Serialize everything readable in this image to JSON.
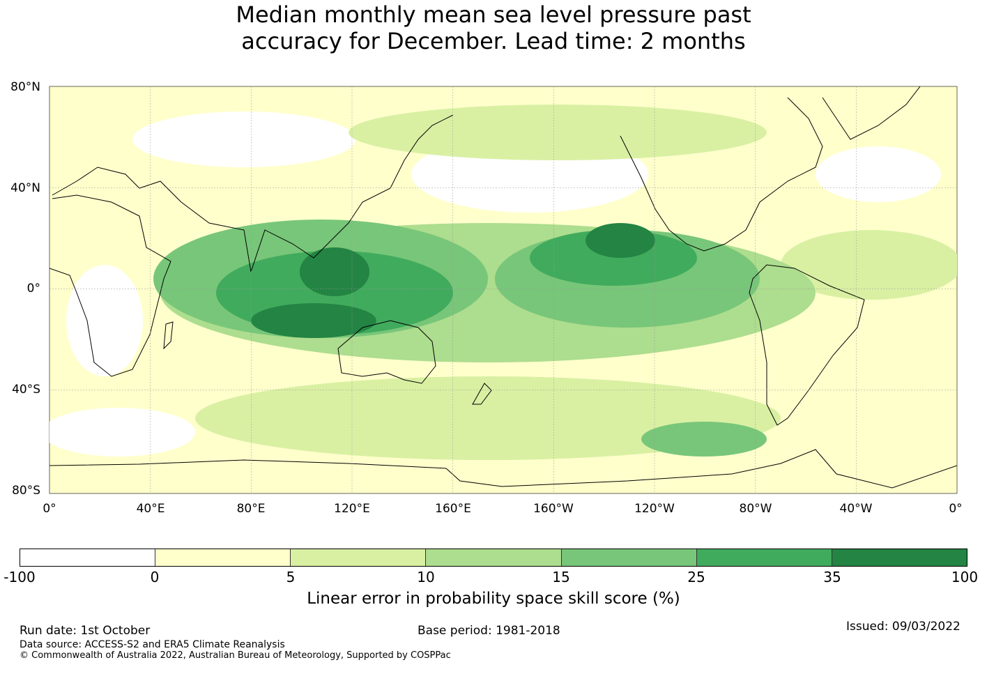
{
  "title": {
    "line1": "Median monthly mean sea level pressure past",
    "line2": "accuracy for December. Lead time: 2 months"
  },
  "map": {
    "lat_labels": [
      "80°N",
      "40°N",
      "0°",
      "40°S",
      "80°S"
    ],
    "lon_labels": [
      "0°",
      "40°E",
      "80°E",
      "120°E",
      "160°E",
      "160°W",
      "120°W",
      "80°W",
      "40°W",
      "0°"
    ],
    "colors": {
      "ocean_background": "#ffffcc",
      "coastline": "#000000",
      "gridline": "#999999"
    }
  },
  "colorbar": {
    "ticks": [
      "-100",
      "0",
      "5",
      "10",
      "15",
      "25",
      "35",
      "100"
    ],
    "colors": [
      "#ffffff",
      "#ffffcc",
      "#d9f0a3",
      "#addd8e",
      "#78c679",
      "#41ab5d",
      "#238443"
    ],
    "label": "Linear error in probability space skill score (%)"
  },
  "footer": {
    "run_date": "Run date: 1st October",
    "base_period": "Base period: 1981-2018",
    "issued": "Issued: 09/03/2022",
    "data_source": "Data source: ACCESS-S2 and ERA5 Climate Reanalysis",
    "copyright": "© Commonwealth of Australia 2022, Australian Bureau of Meteorology, Supported by COSPPac"
  }
}
